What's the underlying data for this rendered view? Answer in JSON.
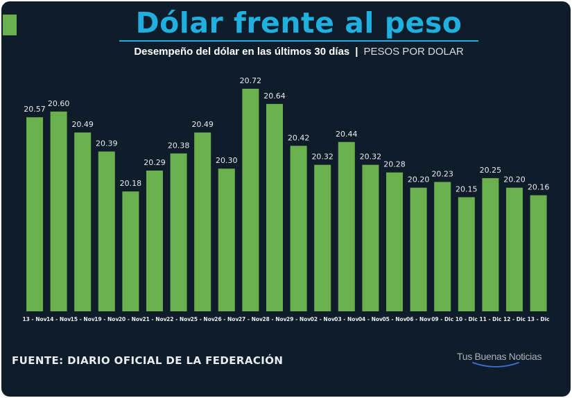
{
  "colors": {
    "background": "#0f1c29",
    "bar": "#6ab04c",
    "title": "#1fb0e0",
    "label": "#e8edf2",
    "source": "#e9edf1",
    "logo_arc": "#3d6fd6"
  },
  "header": {
    "title": "Dólar frente al peso",
    "subtitle": "Desempeño del dólar en las últimos 30 días",
    "separator": "|",
    "unit": "PESOS POR DOLAR"
  },
  "footer": {
    "source": "FUENTE: DIARIO OFICIAL DE LA FEDERACIÓN",
    "logo_text": "Tus Buenas Noticias"
  },
  "chart_data": {
    "type": "bar",
    "categories": [
      "13 - Nov",
      "14 - Nov",
      "15 - Nov",
      "19 - Nov",
      "20 - Nov",
      "21 - Nov",
      "22 - Nov",
      "25 - Nov",
      "26 - Nov",
      "27 - Nov",
      "28 - Nov",
      "29 - Nov",
      "02 - Nov",
      "03 - Nov",
      "04 - Nov",
      "05 - Nov",
      "06 - Nov",
      "09 - Dic",
      "10 - Dic",
      "11 - Dic",
      "12 - Dic",
      "13 - Dic"
    ],
    "values": [
      20.57,
      20.6,
      20.49,
      20.39,
      20.18,
      20.29,
      20.38,
      20.49,
      20.3,
      20.72,
      20.64,
      20.42,
      20.32,
      20.44,
      20.32,
      20.28,
      20.2,
      20.23,
      20.15,
      20.25,
      20.2,
      20.16
    ],
    "value_labels": [
      "20.57",
      "20.60",
      "20.49",
      "20.39",
      "20.18",
      "20.29",
      "20.38",
      "20.49",
      "20.30",
      "20.72",
      "20.64",
      "20.42",
      "20.32",
      "20.44",
      "20.32",
      "20.28",
      "20.20",
      "20.23",
      "20.15",
      "20.25",
      "20.20",
      "20.16"
    ],
    "title": "Dólar frente al peso",
    "xlabel": "",
    "ylabel": "",
    "ylim": [
      19.55,
      20.76
    ],
    "grid": false,
    "legend": "none"
  }
}
